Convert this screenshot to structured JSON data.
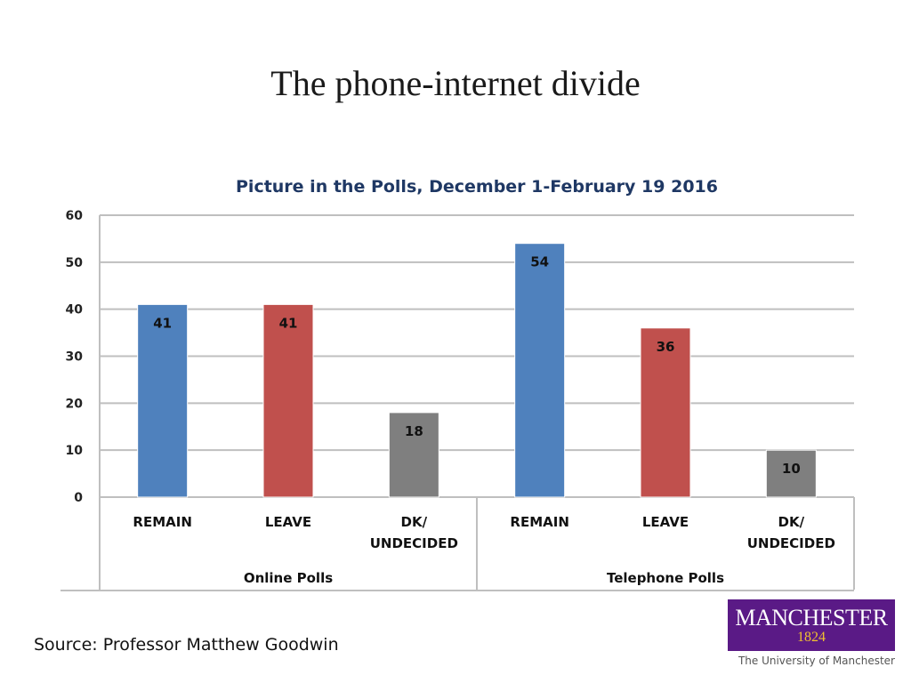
{
  "slide": {
    "title": "The phone-internet divide",
    "source": "Source: Professor Matthew Goodwin"
  },
  "logo": {
    "name": "MANCHESTER",
    "year": "1824",
    "subtitle": "The University of Manchester",
    "colors": {
      "background": "#5a1a86",
      "year": "#f0c030"
    }
  },
  "chart_data": {
    "type": "bar",
    "title": "Picture in the Polls, December 1-February 19 2016",
    "ylim": [
      0,
      60
    ],
    "yticks": [
      0,
      10,
      20,
      30,
      40,
      50,
      60
    ],
    "grid": true,
    "groups": [
      {
        "name": "Online Polls",
        "bars": [
          {
            "label": [
              "REMAIN"
            ],
            "value": 41,
            "color": "#4f81bd"
          },
          {
            "label": [
              "LEAVE"
            ],
            "value": 41,
            "color": "#c0504d"
          },
          {
            "label": [
              "DK/",
              "UNDECIDED"
            ],
            "value": 18,
            "color": "#7f7f7f"
          }
        ]
      },
      {
        "name": "Telephone Polls",
        "bars": [
          {
            "label": [
              "REMAIN"
            ],
            "value": 54,
            "color": "#4f81bd"
          },
          {
            "label": [
              "LEAVE"
            ],
            "value": 36,
            "color": "#c0504d"
          },
          {
            "label": [
              "DK/",
              "UNDECIDED"
            ],
            "value": 10,
            "color": "#7f7f7f"
          }
        ]
      }
    ]
  }
}
